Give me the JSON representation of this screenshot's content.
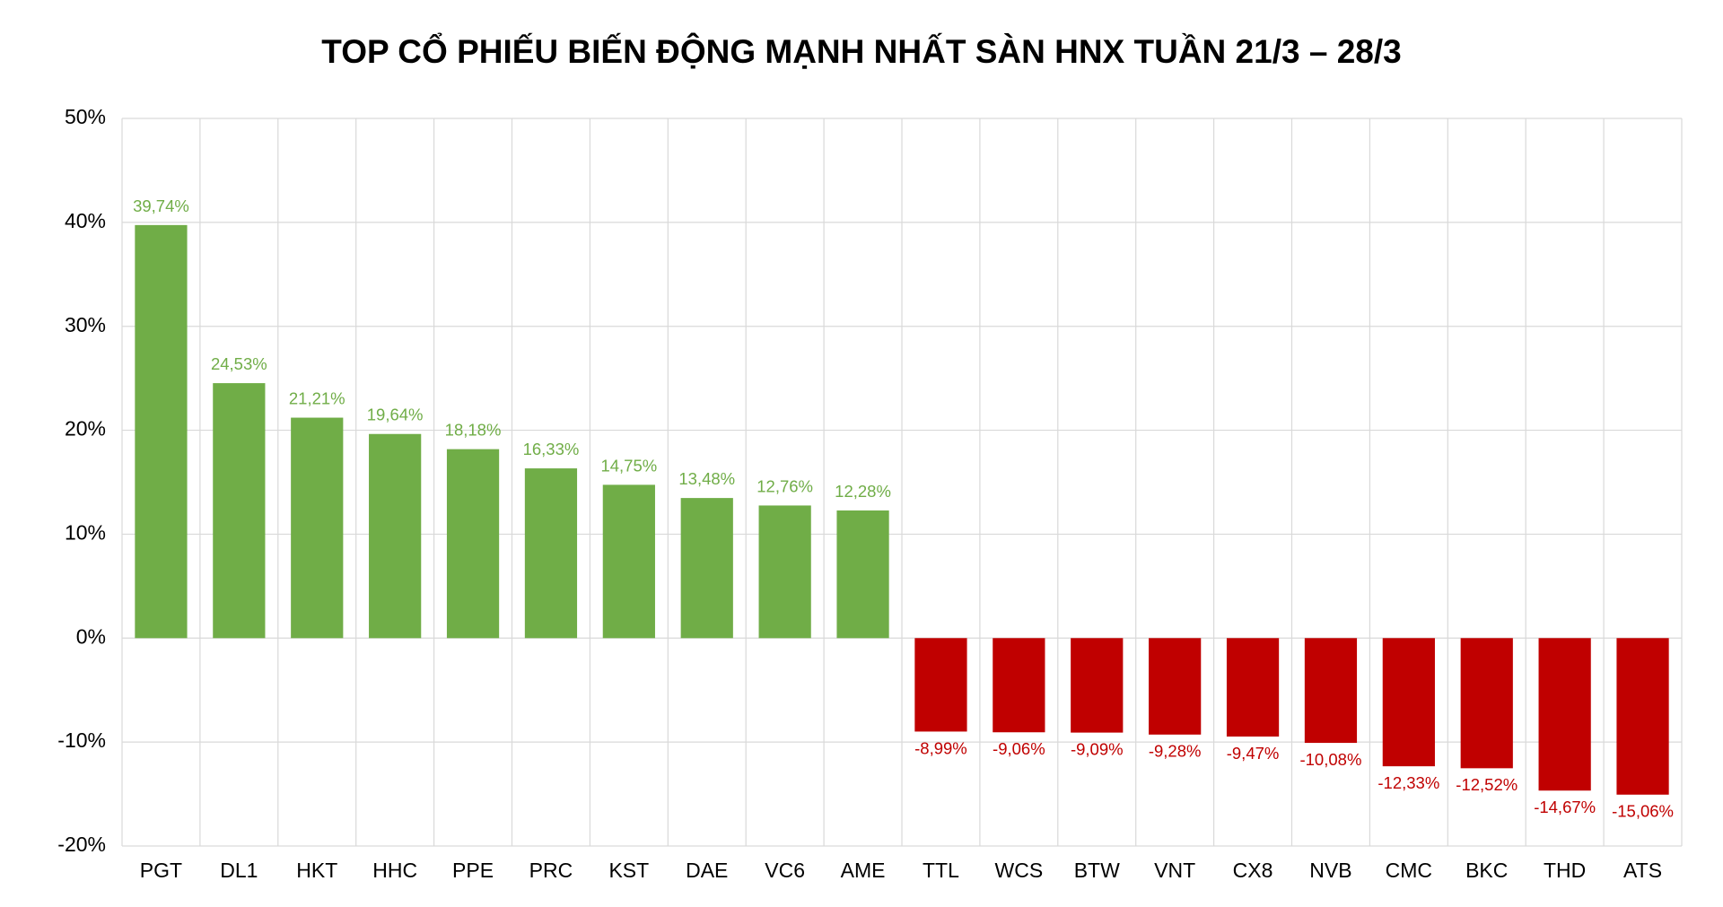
{
  "chart_data": {
    "type": "bar",
    "title": "TOP CỔ PHIẾU BIẾN ĐỘNG MẠNH NHẤT SÀN HNX TUẦN 21/3 – 28/3",
    "categories": [
      "PGT",
      "DL1",
      "HKT",
      "HHC",
      "PPE",
      "PRC",
      "KST",
      "DAE",
      "VC6",
      "AME",
      "TTL",
      "WCS",
      "BTW",
      "VNT",
      "CX8",
      "NVB",
      "CMC",
      "BKC",
      "THD",
      "ATS"
    ],
    "values": [
      39.74,
      24.53,
      21.21,
      19.64,
      18.18,
      16.33,
      14.75,
      13.48,
      12.76,
      12.28,
      -8.99,
      -9.06,
      -9.09,
      -9.28,
      -9.47,
      -10.08,
      -12.33,
      -12.52,
      -14.67,
      -15.06
    ],
    "value_labels": [
      "39,74%",
      "24,53%",
      "21,21%",
      "19,64%",
      "18,18%",
      "16,33%",
      "14,75%",
      "13,48%",
      "12,76%",
      "12,28%",
      "-8,99%",
      "-9,06%",
      "-9,09%",
      "-9,28%",
      "-9,47%",
      "-10,08%",
      "-12,33%",
      "-12,52%",
      "-14,67%",
      "-15,06%"
    ],
    "positive_color": "#70ad47",
    "negative_color": "#c00000",
    "ylim": [
      -20,
      50
    ],
    "yticks": [
      {
        "value": -20,
        "label": "-20%"
      },
      {
        "value": -10,
        "label": "-10%"
      },
      {
        "value": 0,
        "label": "0%"
      },
      {
        "value": 10,
        "label": "10%"
      },
      {
        "value": 20,
        "label": "20%"
      },
      {
        "value": 30,
        "label": "30%"
      },
      {
        "value": 40,
        "label": "40%"
      },
      {
        "value": 50,
        "label": "50%"
      }
    ],
    "grid": true
  }
}
